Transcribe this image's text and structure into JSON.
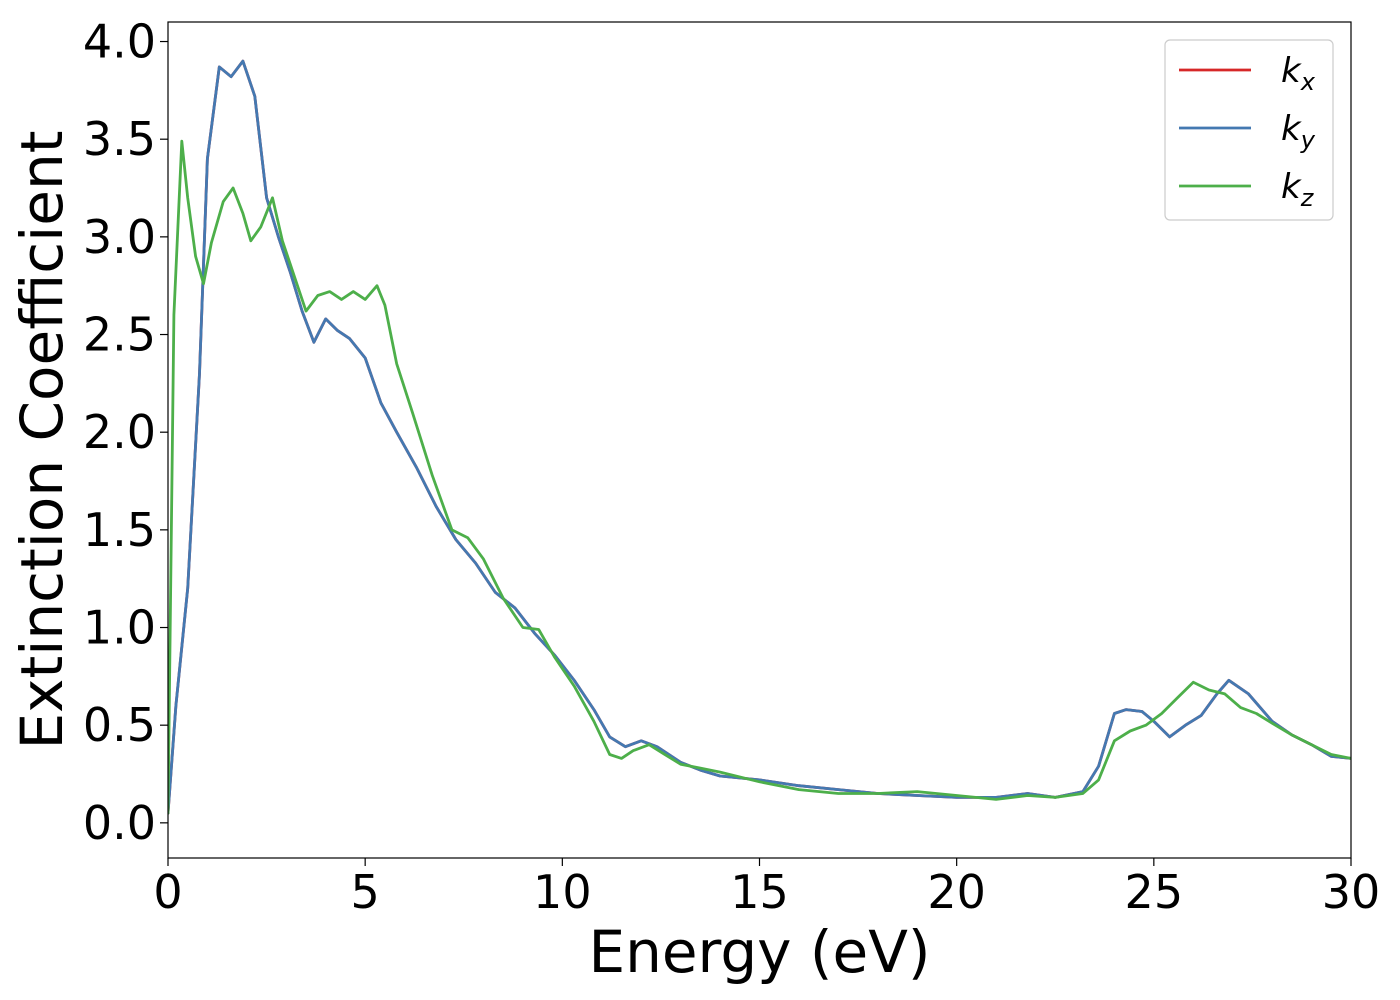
{
  "chart_data": {
    "type": "line",
    "title": "",
    "xlabel": "Energy (eV)",
    "ylabel": "Extinction Coefficient",
    "xlim": [
      0,
      30
    ],
    "ylim": [
      -0.18,
      4.1
    ],
    "xticks": [
      0,
      5,
      10,
      15,
      20,
      25,
      30
    ],
    "yticks": [
      0.0,
      0.5,
      1.0,
      1.5,
      2.0,
      2.5,
      3.0,
      3.5,
      4.0
    ],
    "xtick_labels": [
      "0",
      "5",
      "10",
      "15",
      "20",
      "25",
      "30"
    ],
    "ytick_labels": [
      "0.0",
      "0.5",
      "1.0",
      "1.5",
      "2.0",
      "2.5",
      "3.0",
      "3.5",
      "4.0"
    ],
    "grid": false,
    "legend_position": "top-right",
    "series": [
      {
        "name": "k_x",
        "legend_base": "k",
        "legend_sub": "x",
        "color": "#d62728",
        "x": [
          0,
          0.2,
          0.5,
          0.8,
          1.0,
          1.3,
          1.6,
          1.9,
          2.2,
          2.5,
          2.8,
          3.1,
          3.4,
          3.7,
          4.0,
          4.3,
          4.6,
          5.0,
          5.4,
          5.8,
          6.3,
          6.8,
          7.3,
          7.8,
          8.3,
          8.8,
          9.3,
          9.8,
          10.3,
          10.8,
          11.2,
          11.6,
          12.0,
          12.4,
          13.0,
          13.5,
          14.0,
          15.0,
          16.0,
          17.0,
          18.0,
          19.0,
          20.0,
          21.0,
          21.8,
          22.5,
          23.2,
          23.6,
          24.0,
          24.3,
          24.7,
          25.0,
          25.4,
          25.8,
          26.2,
          26.6,
          26.9,
          27.4,
          28.0,
          28.5,
          29.0,
          29.5,
          30.0
        ],
        "y": [
          0.05,
          0.6,
          1.2,
          2.3,
          3.4,
          3.87,
          3.82,
          3.9,
          3.72,
          3.2,
          3.0,
          2.82,
          2.62,
          2.46,
          2.58,
          2.52,
          2.48,
          2.38,
          2.15,
          2.0,
          1.82,
          1.62,
          1.45,
          1.33,
          1.18,
          1.1,
          0.97,
          0.86,
          0.73,
          0.58,
          0.44,
          0.39,
          0.42,
          0.39,
          0.31,
          0.27,
          0.24,
          0.22,
          0.19,
          0.17,
          0.15,
          0.14,
          0.13,
          0.13,
          0.15,
          0.13,
          0.16,
          0.29,
          0.56,
          0.58,
          0.57,
          0.52,
          0.44,
          0.5,
          0.55,
          0.66,
          0.73,
          0.66,
          0.52,
          0.45,
          0.4,
          0.34,
          0.33
        ]
      },
      {
        "name": "k_y",
        "legend_base": "k",
        "legend_sub": "y",
        "color": "#4479b1",
        "x": [
          0,
          0.2,
          0.5,
          0.8,
          1.0,
          1.3,
          1.6,
          1.9,
          2.2,
          2.5,
          2.8,
          3.1,
          3.4,
          3.7,
          4.0,
          4.3,
          4.6,
          5.0,
          5.4,
          5.8,
          6.3,
          6.8,
          7.3,
          7.8,
          8.3,
          8.8,
          9.3,
          9.8,
          10.3,
          10.8,
          11.2,
          11.6,
          12.0,
          12.4,
          13.0,
          13.5,
          14.0,
          15.0,
          16.0,
          17.0,
          18.0,
          19.0,
          20.0,
          21.0,
          21.8,
          22.5,
          23.2,
          23.6,
          24.0,
          24.3,
          24.7,
          25.0,
          25.4,
          25.8,
          26.2,
          26.6,
          26.9,
          27.4,
          28.0,
          28.5,
          29.0,
          29.5,
          30.0
        ],
        "y": [
          0.05,
          0.6,
          1.2,
          2.3,
          3.4,
          3.87,
          3.82,
          3.9,
          3.72,
          3.2,
          3.0,
          2.82,
          2.62,
          2.46,
          2.58,
          2.52,
          2.48,
          2.38,
          2.15,
          2.0,
          1.82,
          1.62,
          1.45,
          1.33,
          1.18,
          1.1,
          0.97,
          0.86,
          0.73,
          0.58,
          0.44,
          0.39,
          0.42,
          0.39,
          0.31,
          0.27,
          0.24,
          0.22,
          0.19,
          0.17,
          0.15,
          0.14,
          0.13,
          0.13,
          0.15,
          0.13,
          0.16,
          0.29,
          0.56,
          0.58,
          0.57,
          0.52,
          0.44,
          0.5,
          0.55,
          0.66,
          0.73,
          0.66,
          0.52,
          0.45,
          0.4,
          0.34,
          0.33
        ]
      },
      {
        "name": "k_z",
        "legend_base": "k",
        "legend_sub": "z",
        "color": "#4daf4a",
        "x": [
          0,
          0.15,
          0.35,
          0.5,
          0.7,
          0.9,
          1.1,
          1.4,
          1.65,
          1.9,
          2.1,
          2.35,
          2.65,
          2.9,
          3.2,
          3.5,
          3.8,
          4.1,
          4.4,
          4.7,
          5.0,
          5.3,
          5.5,
          5.8,
          6.2,
          6.7,
          7.2,
          7.6,
          8.0,
          8.5,
          9.0,
          9.4,
          9.8,
          10.3,
          10.8,
          11.2,
          11.5,
          11.8,
          12.2,
          12.6,
          13.0,
          13.5,
          14.0,
          15.0,
          16.0,
          17.0,
          18.0,
          19.0,
          20.0,
          21.0,
          21.8,
          22.5,
          23.2,
          23.6,
          24.0,
          24.4,
          24.8,
          25.2,
          25.6,
          26.0,
          26.4,
          26.8,
          27.2,
          27.6,
          28.0,
          28.5,
          29.0,
          29.5,
          30.0
        ],
        "y": [
          0.05,
          2.6,
          3.49,
          3.2,
          2.9,
          2.76,
          2.97,
          3.18,
          3.25,
          3.12,
          2.98,
          3.05,
          3.2,
          2.98,
          2.8,
          2.62,
          2.7,
          2.72,
          2.68,
          2.72,
          2.68,
          2.75,
          2.65,
          2.35,
          2.1,
          1.78,
          1.5,
          1.46,
          1.35,
          1.15,
          1.0,
          0.99,
          0.85,
          0.7,
          0.52,
          0.35,
          0.33,
          0.37,
          0.4,
          0.35,
          0.3,
          0.28,
          0.26,
          0.21,
          0.17,
          0.15,
          0.15,
          0.16,
          0.14,
          0.12,
          0.14,
          0.13,
          0.15,
          0.22,
          0.42,
          0.47,
          0.5,
          0.56,
          0.64,
          0.72,
          0.68,
          0.66,
          0.59,
          0.56,
          0.51,
          0.45,
          0.4,
          0.35,
          0.33
        ]
      }
    ]
  }
}
